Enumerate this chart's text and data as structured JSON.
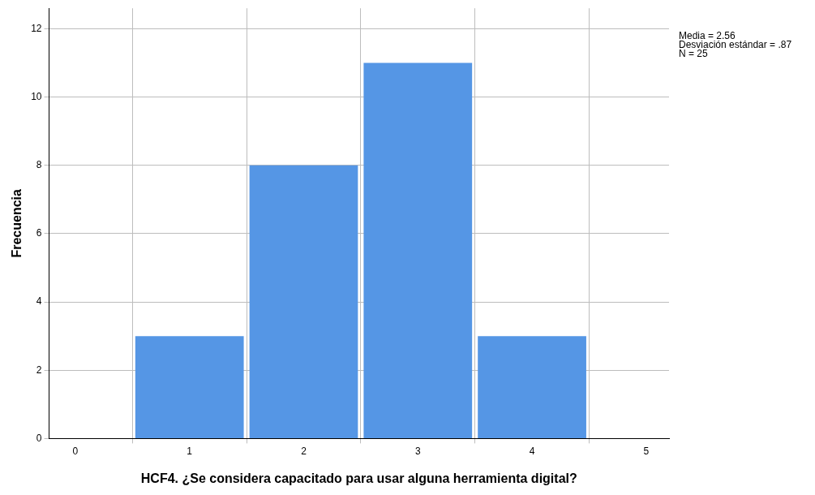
{
  "chart_data": {
    "type": "histogram",
    "xlabel": "HCF4. ¿Se considera capacitado para usar alguna herramienta digital?",
    "ylabel": "Frecuencia",
    "bins": [
      0.5,
      1.5,
      2.5,
      3.5,
      4.5
    ],
    "values": [
      3,
      8,
      11,
      3
    ],
    "color": "#5596e5",
    "xlim": [
      -0.23,
      5.2
    ],
    "xticks": [
      0,
      1,
      2,
      3,
      4,
      5
    ],
    "ylim": [
      0,
      12.6
    ],
    "yticks": [
      0,
      2,
      4,
      6,
      8,
      10,
      12
    ],
    "grid": true,
    "legend": false,
    "annotations": [
      "Media = 2.56",
      "Desviación estándar = .87",
      "N = 25"
    ]
  }
}
